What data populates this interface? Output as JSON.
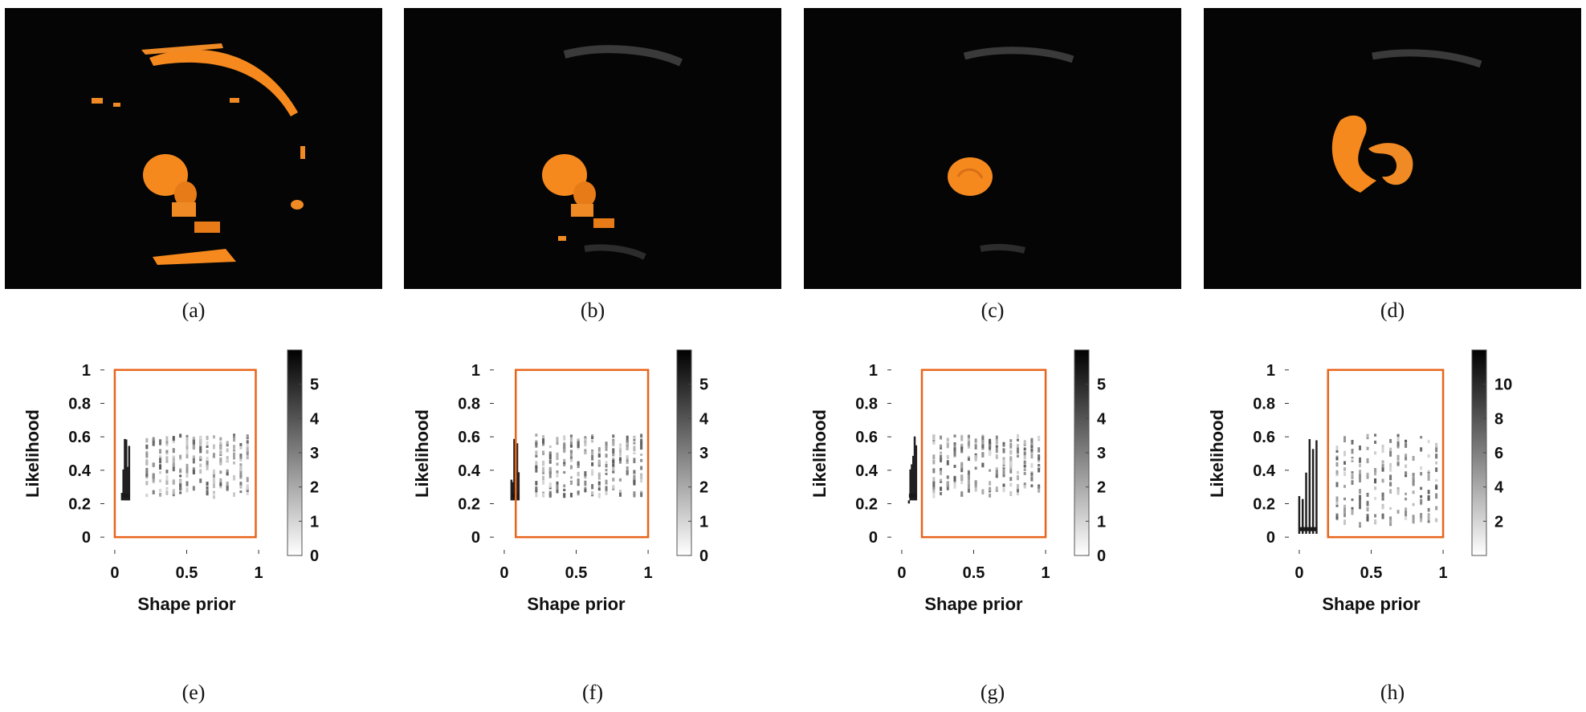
{
  "figure": {
    "top_panels": [
      {
        "id": "a",
        "caption": "(a)"
      },
      {
        "id": "b",
        "caption": "(b)"
      },
      {
        "id": "c",
        "caption": "(c)"
      },
      {
        "id": "d",
        "caption": "(d)"
      }
    ],
    "bottom_panels": [
      {
        "id": "e",
        "caption": "(e)"
      },
      {
        "id": "f",
        "caption": "(f)"
      },
      {
        "id": "g",
        "caption": "(g)"
      },
      {
        "id": "h",
        "caption": "(h)"
      }
    ],
    "colors": {
      "segmentation": "#f5891e",
      "background": "#050505",
      "box": "#e8641b"
    }
  },
  "chart_data": [
    {
      "type": "heatmap",
      "panel": "e",
      "xlabel": "Shape prior",
      "ylabel": "Likelihood",
      "xticks": [
        "0",
        "0.5",
        "1"
      ],
      "yticks": [
        "0",
        "0.2",
        "0.4",
        "0.6",
        "0.8",
        "1"
      ],
      "xlim": [
        -0.1,
        1.1
      ],
      "ylim": [
        -0.1,
        1.1
      ],
      "colorbar": {
        "ticks": [
          "0",
          "1",
          "2",
          "3",
          "4",
          "5"
        ],
        "range": [
          0,
          6
        ]
      },
      "box": {
        "x": [
          0.0,
          0.98
        ],
        "y": [
          0.0,
          1.0
        ]
      },
      "dense_cluster": {
        "x": [
          0.05,
          0.1
        ],
        "y": [
          0.2,
          0.63
        ]
      },
      "columns": {
        "x_start": 0.22,
        "x_end": 0.92,
        "count": 16,
        "y": [
          0.26,
          0.62
        ]
      }
    },
    {
      "type": "heatmap",
      "panel": "f",
      "xlabel": "Shape prior",
      "ylabel": "Likelihood",
      "xticks": [
        "0",
        "0.5",
        "1"
      ],
      "yticks": [
        "0",
        "0.2",
        "0.4",
        "0.6",
        "0.8",
        "1"
      ],
      "xlim": [
        -0.1,
        1.1
      ],
      "ylim": [
        -0.1,
        1.1
      ],
      "colorbar": {
        "ticks": [
          "0",
          "1",
          "2",
          "3",
          "4",
          "5"
        ],
        "range": [
          0,
          6
        ]
      },
      "box": {
        "x": [
          0.08,
          1.0
        ],
        "y": [
          0.0,
          1.0
        ]
      },
      "dense_cluster": {
        "x": [
          0.05,
          0.1
        ],
        "y": [
          0.2,
          0.63
        ]
      },
      "columns": {
        "x_start": 0.22,
        "x_end": 0.95,
        "count": 16,
        "y": [
          0.26,
          0.62
        ]
      }
    },
    {
      "type": "heatmap",
      "panel": "g",
      "xlabel": "Shape prior",
      "ylabel": "Likelihood",
      "xticks": [
        "0",
        "0.5",
        "1"
      ],
      "yticks": [
        "0",
        "0.2",
        "0.4",
        "0.6",
        "0.8",
        "1"
      ],
      "xlim": [
        -0.1,
        1.1
      ],
      "ylim": [
        -0.1,
        1.1
      ],
      "colorbar": {
        "ticks": [
          "0",
          "1",
          "2",
          "3",
          "4",
          "5"
        ],
        "range": [
          0,
          6
        ]
      },
      "box": {
        "x": [
          0.14,
          1.0
        ],
        "y": [
          0.0,
          1.0
        ]
      },
      "dense_cluster": {
        "x": [
          0.05,
          0.1
        ],
        "y": [
          0.2,
          0.63
        ]
      },
      "columns": {
        "x_start": 0.22,
        "x_end": 0.95,
        "count": 16,
        "y": [
          0.26,
          0.62
        ]
      }
    },
    {
      "type": "heatmap",
      "panel": "h",
      "xlabel": "Shape prior",
      "ylabel": "Likelihood",
      "xticks": [
        "0",
        "0.5",
        "1"
      ],
      "yticks": [
        "0",
        "0.2",
        "0.4",
        "0.6",
        "0.8",
        "1"
      ],
      "xlim": [
        -0.1,
        1.1
      ],
      "ylim": [
        -0.1,
        1.1
      ],
      "colorbar": {
        "ticks": [
          "2",
          "4",
          "6",
          "8",
          "10"
        ],
        "range": [
          0,
          12
        ]
      },
      "box": {
        "x": [
          0.2,
          1.0
        ],
        "y": [
          0.0,
          1.0
        ]
      },
      "dense_cluster": {
        "x": [
          0.0,
          0.12
        ],
        "y": [
          0.0,
          0.63
        ]
      },
      "columns": {
        "x_start": 0.26,
        "x_end": 0.95,
        "count": 14,
        "y": [
          0.08,
          0.62
        ]
      }
    }
  ]
}
